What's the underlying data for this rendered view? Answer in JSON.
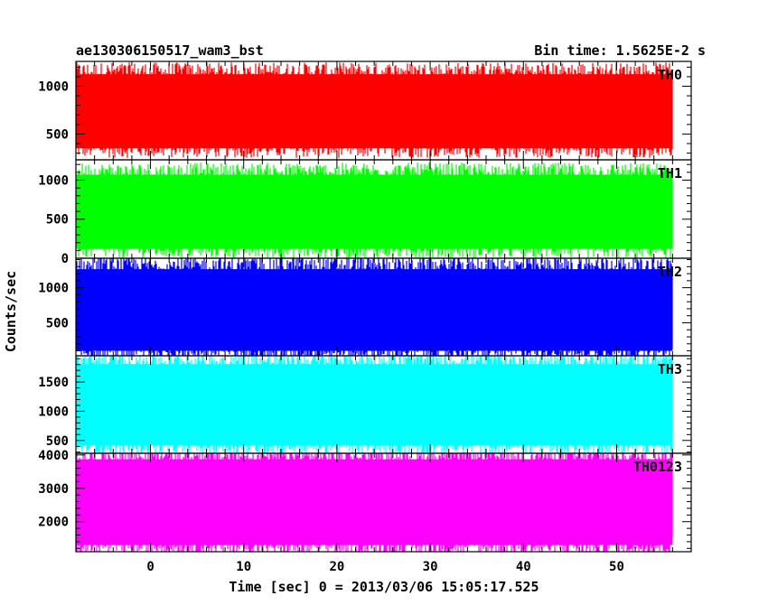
{
  "header": {
    "title": "ae130306150517_wam3_bst",
    "bin_time": "Bin time: 1.5625E-2 s"
  },
  "chart_data": {
    "type": "line",
    "title": "ae130306150517_wam3_bst",
    "xlabel": "Time [sec] 0 = 2013/03/06 15:05:17.525",
    "ylabel": "Counts/sec",
    "xlim": [
      -8,
      58
    ],
    "x_ticks": [
      0,
      10,
      20,
      30,
      40,
      50
    ],
    "x_data_range": [
      -8,
      56
    ],
    "bin_time_s": 0.015625,
    "grid": false,
    "panels": [
      {
        "name": "TH0",
        "color": "#ff0000",
        "ylim": [
          230,
          1260
        ],
        "y_ticks": [
          500,
          1000
        ],
        "y_tick_labels": [
          "500",
          "1000"
        ],
        "typical": [
          350,
          1150
        ]
      },
      {
        "name": "TH1",
        "color": "#00ff00",
        "ylim": [
          0,
          1260
        ],
        "y_ticks": [
          0,
          500,
          1000
        ],
        "y_tick_labels": [
          "0",
          "500",
          "1000"
        ],
        "typical": [
          120,
          1100
        ]
      },
      {
        "name": "TH2",
        "color": "#0000ff",
        "ylim": [
          30,
          1420
        ],
        "y_ticks": [
          500,
          1000
        ],
        "y_tick_labels": [
          "500",
          "1000"
        ],
        "typical": [
          100,
          1300
        ]
      },
      {
        "name": "TH3",
        "color": "#00ffff",
        "ylim": [
          280,
          1950
        ],
        "y_ticks": [
          500,
          1000,
          1500
        ],
        "y_tick_labels": [
          "500",
          "1000",
          "1500"
        ],
        "typical": [
          420,
          1850
        ]
      },
      {
        "name": "TH0123",
        "color": "#ff00ff",
        "ylim": [
          1100,
          4050
        ],
        "y_ticks": [
          2000,
          3000,
          4000
        ],
        "y_tick_labels": [
          "2000",
          "3000",
          "4000"
        ],
        "typical": [
          1300,
          3950
        ]
      }
    ]
  }
}
